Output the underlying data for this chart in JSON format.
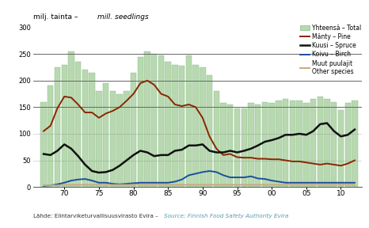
{
  "years": [
    1967,
    1968,
    1969,
    1970,
    1971,
    1972,
    1973,
    1974,
    1975,
    1976,
    1977,
    1978,
    1979,
    1980,
    1981,
    1982,
    1983,
    1984,
    1985,
    1986,
    1987,
    1988,
    1989,
    1990,
    1991,
    1992,
    1993,
    1994,
    1995,
    1996,
    1997,
    1998,
    1999,
    2000,
    2001,
    2002,
    2003,
    2004,
    2005,
    2006,
    2007,
    2008,
    2009,
    2010,
    2011,
    2012
  ],
  "total": [
    160,
    190,
    225,
    230,
    255,
    235,
    220,
    215,
    180,
    195,
    180,
    175,
    180,
    215,
    245,
    255,
    250,
    248,
    235,
    230,
    228,
    248,
    230,
    225,
    210,
    180,
    158,
    155,
    148,
    148,
    158,
    155,
    160,
    158,
    162,
    165,
    162,
    162,
    158,
    165,
    170,
    165,
    160,
    145,
    158,
    162
  ],
  "pine": [
    105,
    115,
    148,
    170,
    168,
    155,
    140,
    140,
    130,
    138,
    143,
    150,
    162,
    175,
    195,
    200,
    192,
    175,
    170,
    155,
    152,
    155,
    150,
    130,
    95,
    72,
    60,
    62,
    56,
    55,
    55,
    53,
    53,
    52,
    52,
    50,
    48,
    48,
    46,
    44,
    42,
    44,
    42,
    40,
    44,
    50
  ],
  "spruce": [
    62,
    60,
    68,
    80,
    72,
    58,
    42,
    30,
    27,
    28,
    32,
    40,
    50,
    60,
    68,
    65,
    58,
    60,
    60,
    68,
    70,
    78,
    78,
    80,
    68,
    65,
    65,
    68,
    65,
    68,
    72,
    78,
    85,
    88,
    92,
    98,
    98,
    100,
    98,
    105,
    118,
    120,
    105,
    95,
    98,
    108
  ],
  "birch": [
    2,
    3,
    5,
    8,
    12,
    14,
    15,
    12,
    8,
    8,
    6,
    5,
    6,
    7,
    8,
    8,
    8,
    8,
    8,
    10,
    14,
    22,
    25,
    28,
    30,
    28,
    22,
    18,
    18,
    18,
    20,
    16,
    15,
    12,
    10,
    8,
    8,
    8,
    8,
    8,
    8,
    8,
    8,
    8,
    8,
    8
  ],
  "other": [
    3,
    3,
    3,
    4,
    4,
    4,
    4,
    4,
    4,
    4,
    4,
    4,
    4,
    4,
    4,
    4,
    4,
    4,
    4,
    4,
    4,
    4,
    4,
    4,
    4,
    4,
    4,
    4,
    4,
    4,
    4,
    4,
    4,
    4,
    4,
    4,
    4,
    4,
    4,
    4,
    4,
    4,
    4,
    4,
    4,
    4
  ],
  "bar_color": "#b8d9b0",
  "bar_edge_color": "#8aba8a",
  "pine_color": "#8b2500",
  "spruce_color": "#111111",
  "birch_color": "#1a4f9c",
  "other_color": "#c8a882",
  "ylim": [
    0,
    300
  ],
  "yticks": [
    0,
    50,
    100,
    150,
    200,
    250,
    300
  ],
  "solid_hlines": [
    250,
    200,
    150
  ],
  "dotted_hlines": [
    100,
    50
  ],
  "xtick_labels": [
    "70",
    "75",
    "80",
    "85",
    "90",
    "95",
    "00",
    "05",
    "10"
  ],
  "xtick_positions": [
    1970,
    1975,
    1980,
    1985,
    1990,
    1995,
    2000,
    2005,
    2010
  ],
  "title_regular": "milj. tainta – ",
  "title_italic": "mill. seedlings",
  "source_regular": "Lähde: Elintarviketurvallisuusvirasto Evira – ",
  "source_italic": "Source: Finnish Food Safety Authority Evira",
  "legend_items": [
    {
      "fi": "Yhteensä – ",
      "en": "Total",
      "type": "bar"
    },
    {
      "fi": "Mänty – ",
      "en": "Pine",
      "type": "pine"
    },
    {
      "fi": "Kuusi – ",
      "en": "Spruce",
      "type": "spruce"
    },
    {
      "fi": "Koivu – ",
      "en": "Birch",
      "type": "birch"
    },
    {
      "fi": "Muut puulajit\n",
      "en": "Other species",
      "type": "other"
    }
  ],
  "background_color": "#ffffff"
}
